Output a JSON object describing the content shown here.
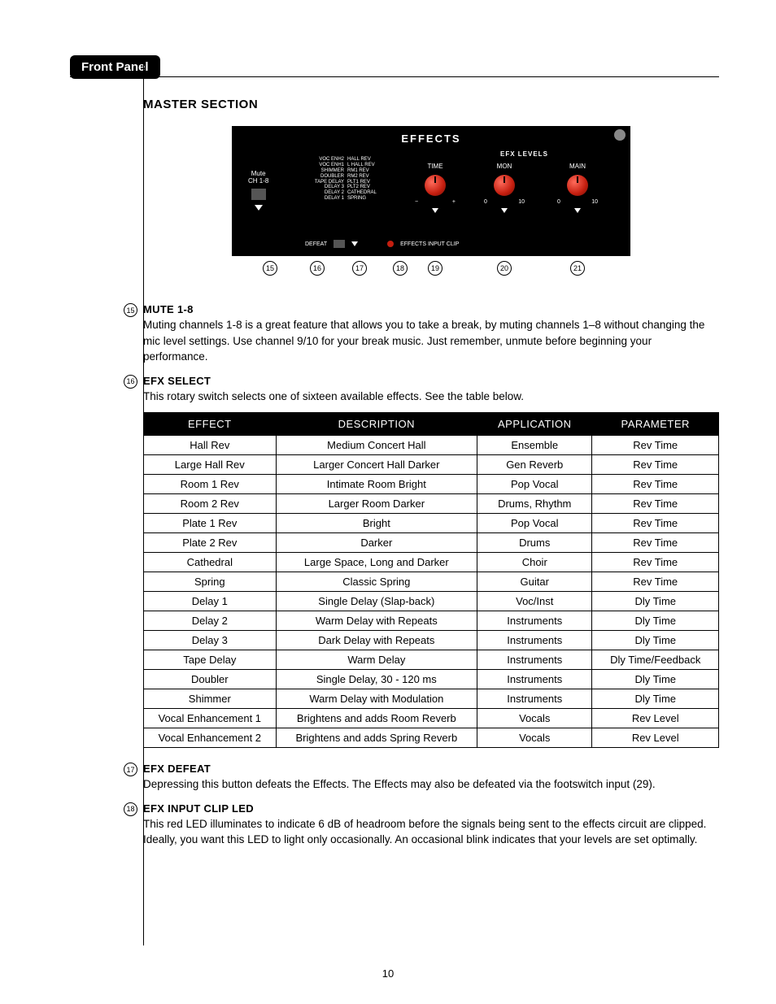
{
  "tab": "Front Panel",
  "section_title": "MASTER SECTION",
  "panel": {
    "title": "EFFECTS",
    "mute_label_1": "Mute",
    "mute_label_2": "CH 1-8",
    "efx_levels": "EFX LEVELS",
    "time": "TIME",
    "mon": "MON",
    "main": "MAIN",
    "range_minus": "−",
    "range_plus": "+",
    "range_0": "0",
    "range_10": "10",
    "defeat": "DEFEAT",
    "input_clip": "EFFECTS INPUT CLIP",
    "select": {
      "l8": "VOC ENH2",
      "r8": "HALL REV",
      "l7": "VOC ENH1",
      "r7": "L HALL REV",
      "l6": "SHIMMER",
      "r6": "RM1 REV",
      "l5": "DOUBLER",
      "r5": "RM2 REV",
      "l4": "TAPE DELAY",
      "r4": "PLT1 REV",
      "l3": "DELAY 3",
      "r3": "PLT2 REV",
      "l2": "DELAY 2",
      "r2": "CATHEDRAL",
      "l1": "DELAY 1",
      "r1": "SPRING"
    }
  },
  "callouts": {
    "c15": "15",
    "c16": "16",
    "c17": "17",
    "c18": "18",
    "c19": "19",
    "c20": "20",
    "c21": "21"
  },
  "entries": {
    "mute": {
      "num": "15",
      "title": "MUTE 1-8",
      "body": "Muting channels 1-8 is a great feature that allows you to take a break, by muting channels 1–8 without changing the mic level settings. Use channel 9/10 for your break music. Just remember, unmute before beginning your performance."
    },
    "efx_select": {
      "num": "16",
      "title": "EFX SELECT",
      "body": "This rotary switch selects one of sixteen available effects. See the table below."
    },
    "efx_defeat": {
      "num": "17",
      "title": "EFX DEFEAT",
      "body": "Depressing this button defeats the Effects. The Effects may also be defeated via the footswitch input (29)."
    },
    "efx_clip": {
      "num": "18",
      "title": "EFX INPUT CLIP LED",
      "body": "This red LED illuminates to indicate 6 dB of headroom before the signals being sent to the effects circuit are clipped. Ideally, you want this LED to light only occasionally. An occasional blink indicates that your levels are set optimally."
    }
  },
  "table": {
    "headers": {
      "h1": "EFFECT",
      "h2": "DESCRIPTION",
      "h3": "APPLICATION",
      "h4": "PARAMETER"
    },
    "rows": [
      [
        "Hall Rev",
        "Medium Concert Hall",
        "Ensemble",
        "Rev Time"
      ],
      [
        "Large Hall Rev",
        "Larger Concert Hall Darker",
        "Gen Reverb",
        "Rev Time"
      ],
      [
        "Room 1 Rev",
        "Intimate Room Bright",
        "Pop Vocal",
        "Rev Time"
      ],
      [
        "Room 2 Rev",
        "Larger Room Darker",
        "Drums, Rhythm",
        "Rev Time"
      ],
      [
        "Plate 1 Rev",
        "Bright",
        "Pop Vocal",
        "Rev Time"
      ],
      [
        "Plate 2 Rev",
        "Darker",
        "Drums",
        "Rev Time"
      ],
      [
        "Cathedral",
        "Large Space, Long and Darker",
        "Choir",
        "Rev Time"
      ],
      [
        "Spring",
        "Classic Spring",
        "Guitar",
        "Rev Time"
      ],
      [
        "Delay 1",
        "Single Delay (Slap-back)",
        "Voc/Inst",
        "Dly Time"
      ],
      [
        "Delay 2",
        "Warm Delay with Repeats",
        "Instruments",
        "Dly Time"
      ],
      [
        "Delay 3",
        "Dark Delay with Repeats",
        "Instruments",
        "Dly Time"
      ],
      [
        "Tape Delay",
        "Warm Delay",
        "Instruments",
        "Dly Time/Feedback"
      ],
      [
        "Doubler",
        "Single Delay, 30 - 120 ms",
        "Instruments",
        "Dly Time"
      ],
      [
        "Shimmer",
        "Warm Delay with Modulation",
        "Instruments",
        "Dly Time"
      ],
      [
        "Vocal Enhancement 1",
        "Brightens and adds Room Reverb",
        "Vocals",
        "Rev Level"
      ],
      [
        "Vocal Enhancement 2",
        "Brightens and adds Spring Reverb",
        "Vocals",
        "Rev Level"
      ]
    ]
  },
  "page_number": "10"
}
